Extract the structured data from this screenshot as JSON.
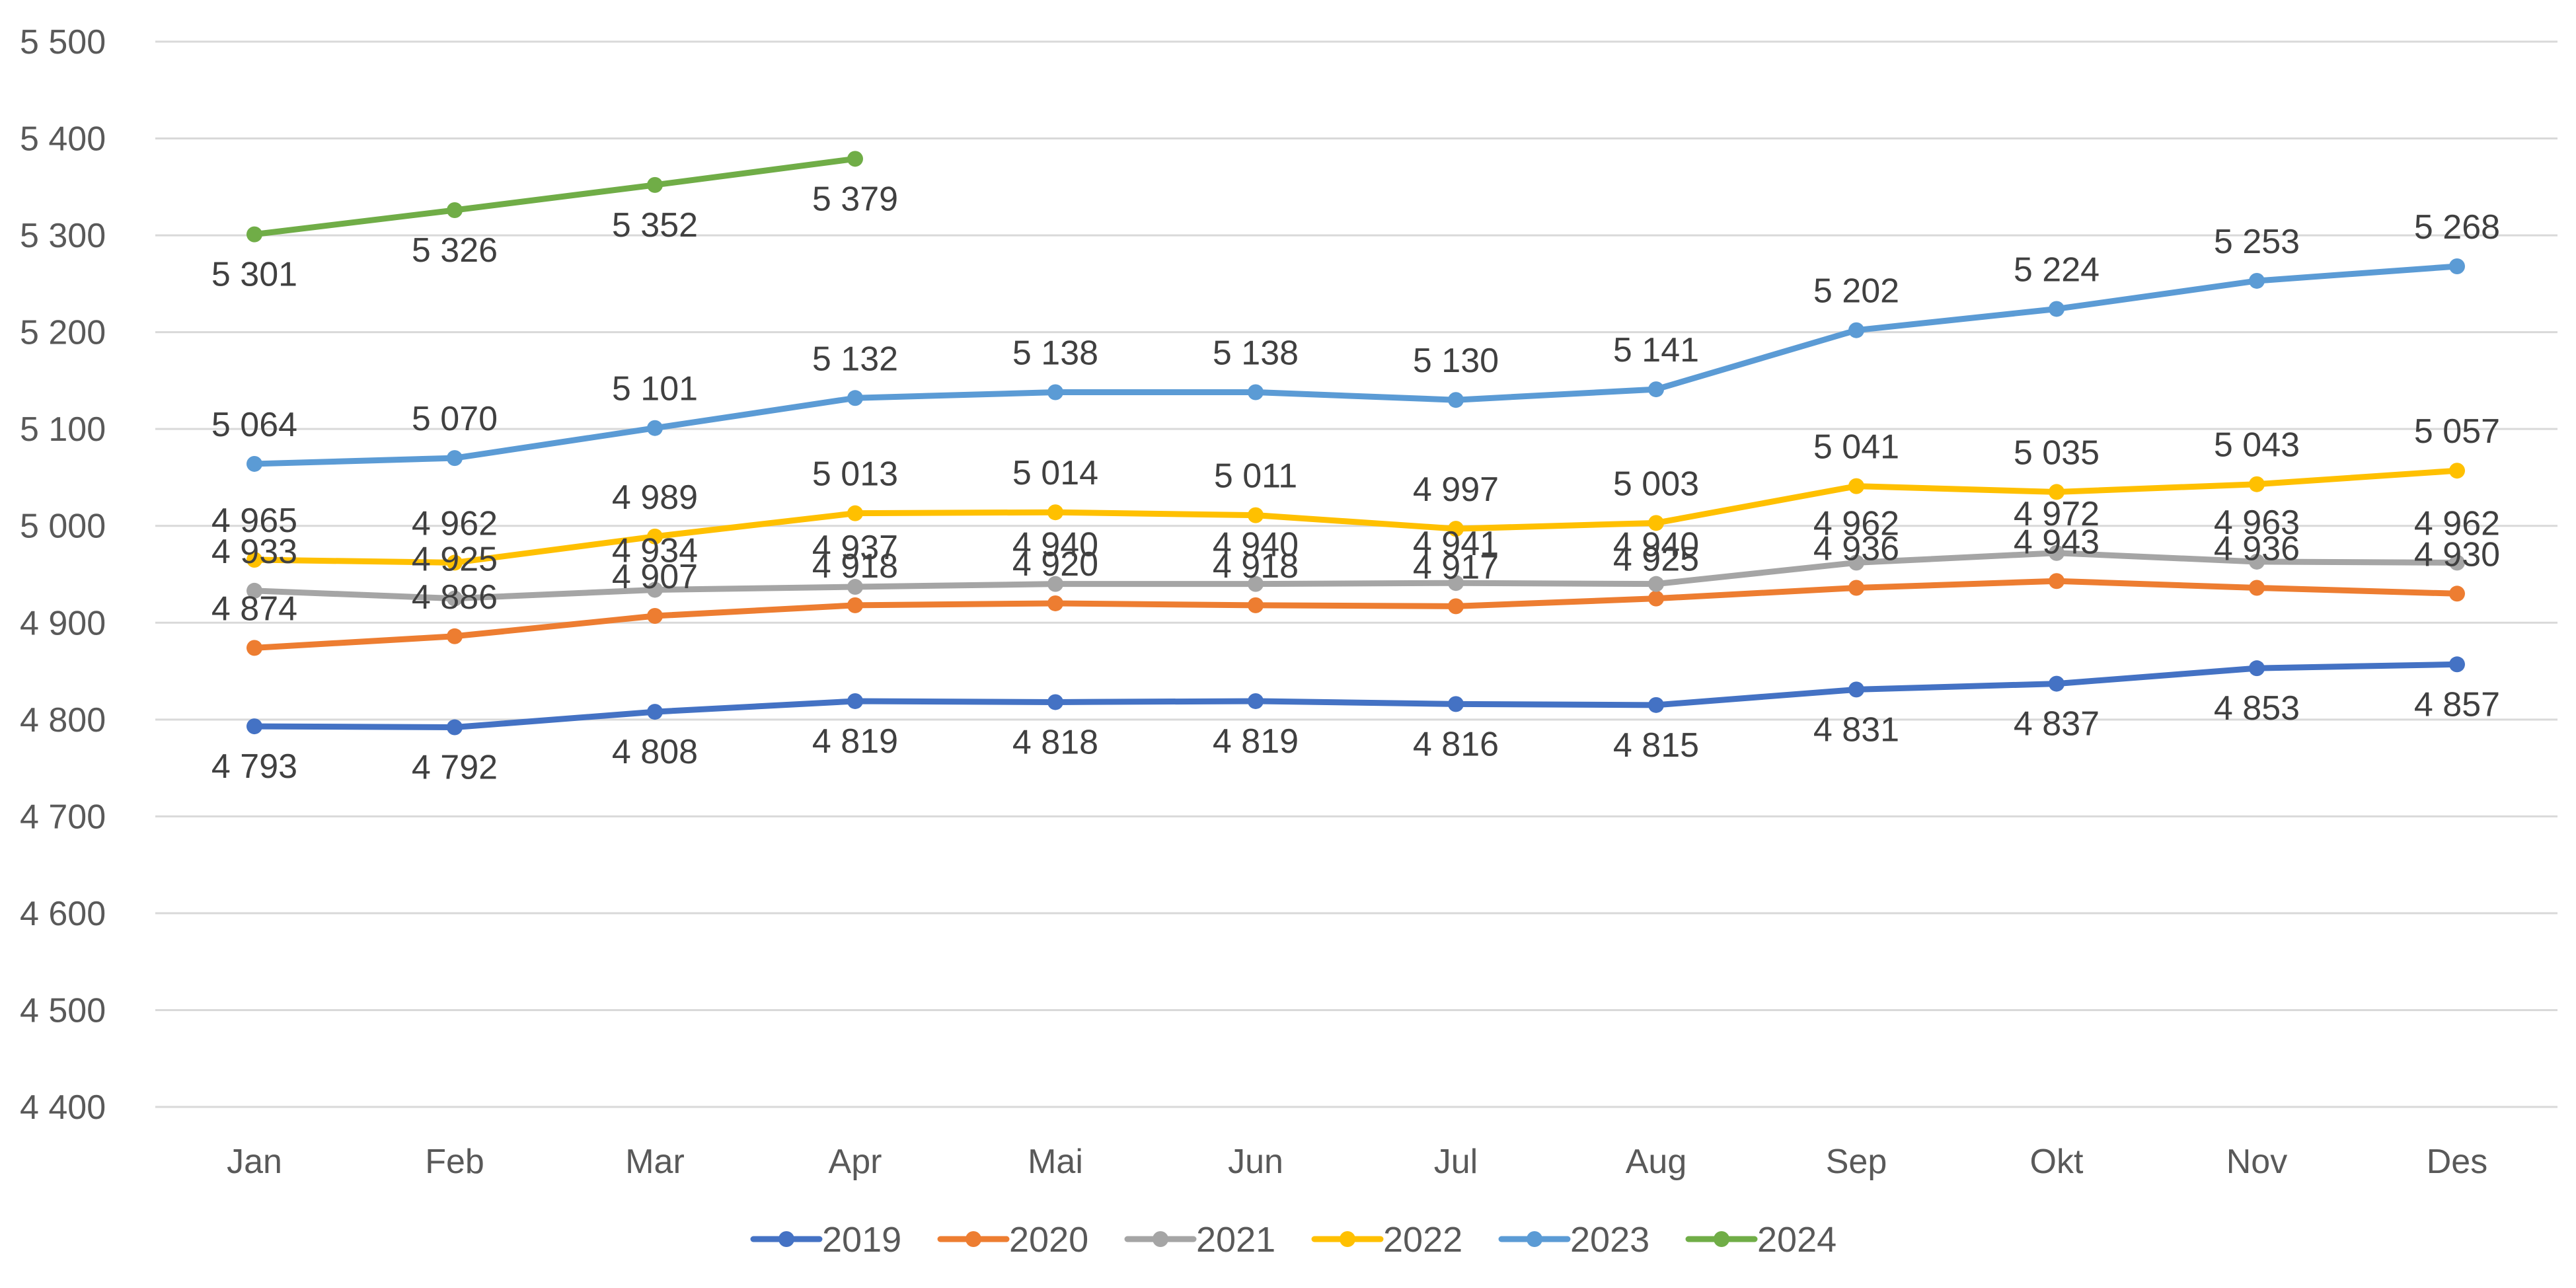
{
  "chart_data": {
    "type": "line",
    "title": "",
    "xlabel": "",
    "ylabel": "",
    "ylim": [
      4400,
      5500
    ],
    "ytick_step": 100,
    "grid": true,
    "legend_position": "bottom",
    "categories": [
      "Jan",
      "Feb",
      "Mar",
      "Apr",
      "Mai",
      "Jun",
      "Jul",
      "Aug",
      "Sep",
      "Okt",
      "Nov",
      "Des"
    ],
    "series": [
      {
        "name": "2019",
        "color": "#4472C4",
        "label_position": "below",
        "values": [
          4793,
          4792,
          4808,
          4819,
          4818,
          4819,
          4816,
          4815,
          4831,
          4837,
          4853,
          4857
        ]
      },
      {
        "name": "2020",
        "color": "#ED7D31",
        "label_position": "above",
        "values": [
          4874,
          4886,
          4907,
          4918,
          4920,
          4918,
          4917,
          4925,
          4936,
          4943,
          4936,
          4930
        ]
      },
      {
        "name": "2021",
        "color": "#A5A5A5",
        "label_position": "above",
        "values": [
          4933,
          4925,
          4934,
          4937,
          4940,
          4940,
          4941,
          4940,
          4962,
          4972,
          4963,
          4962
        ]
      },
      {
        "name": "2022",
        "color": "#FFC000",
        "label_position": "above",
        "values": [
          4965,
          4962,
          4989,
          5013,
          5014,
          5011,
          4997,
          5003,
          5041,
          5035,
          5043,
          5057
        ]
      },
      {
        "name": "2023",
        "color": "#5B9BD5",
        "label_position": "above",
        "values": [
          5064,
          5070,
          5101,
          5132,
          5138,
          5138,
          5130,
          5141,
          5202,
          5224,
          5253,
          5268
        ]
      },
      {
        "name": "2024",
        "color": "#70AD47",
        "label_position": "below",
        "values": [
          5301,
          5326,
          5352,
          5379,
          null,
          null,
          null,
          null,
          null,
          null,
          null,
          null
        ]
      }
    ]
  }
}
